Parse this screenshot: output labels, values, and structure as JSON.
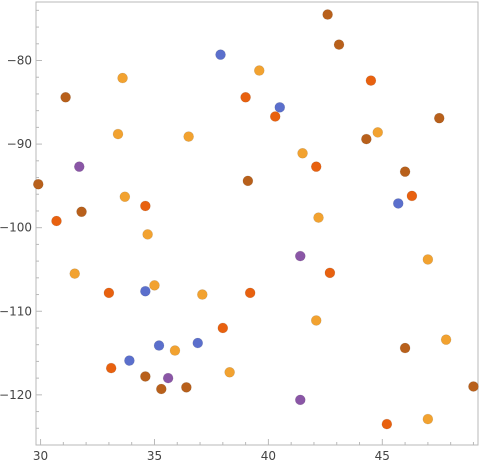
{
  "chart_data": {
    "type": "scatter",
    "title": "",
    "xlabel": "",
    "ylabel": "",
    "xlim": [
      29.8,
      49.2
    ],
    "ylim": [
      -126,
      -73
    ],
    "x_ticks": [
      30,
      35,
      40,
      45
    ],
    "y_ticks": [
      -80,
      -90,
      -100,
      -110,
      -120
    ],
    "grid": false,
    "legend": "none",
    "colors": {
      "blue": "#5b6fcc",
      "purple": "#8a56a6",
      "dark_orange": "#e8610f",
      "light_orange": "#f2a230",
      "brown": "#b8601b",
      "frame": "#b9b9b9"
    },
    "points": [
      {
        "x": 29.9,
        "y": -94.8,
        "color": "brown"
      },
      {
        "x": 30.7,
        "y": -99.2,
        "color": "dark_orange"
      },
      {
        "x": 31.1,
        "y": -84.4,
        "color": "brown"
      },
      {
        "x": 31.5,
        "y": -105.5,
        "color": "light_orange"
      },
      {
        "x": 31.7,
        "y": -92.7,
        "color": "purple"
      },
      {
        "x": 31.8,
        "y": -98.1,
        "color": "brown"
      },
      {
        "x": 33.0,
        "y": -107.8,
        "color": "dark_orange"
      },
      {
        "x": 33.1,
        "y": -116.8,
        "color": "dark_orange"
      },
      {
        "x": 33.4,
        "y": -88.8,
        "color": "light_orange"
      },
      {
        "x": 33.6,
        "y": -82.1,
        "color": "light_orange"
      },
      {
        "x": 33.7,
        "y": -96.3,
        "color": "light_orange"
      },
      {
        "x": 33.9,
        "y": -115.9,
        "color": "blue"
      },
      {
        "x": 34.6,
        "y": -97.4,
        "color": "dark_orange"
      },
      {
        "x": 34.6,
        "y": -107.6,
        "color": "blue"
      },
      {
        "x": 34.6,
        "y": -117.8,
        "color": "brown"
      },
      {
        "x": 34.7,
        "y": -100.8,
        "color": "light_orange"
      },
      {
        "x": 35.0,
        "y": -106.9,
        "color": "light_orange"
      },
      {
        "x": 35.2,
        "y": -114.1,
        "color": "blue"
      },
      {
        "x": 35.3,
        "y": -119.3,
        "color": "brown"
      },
      {
        "x": 35.6,
        "y": -118.0,
        "color": "purple"
      },
      {
        "x": 35.9,
        "y": -114.7,
        "color": "light_orange"
      },
      {
        "x": 36.4,
        "y": -119.1,
        "color": "brown"
      },
      {
        "x": 36.5,
        "y": -89.1,
        "color": "light_orange"
      },
      {
        "x": 36.9,
        "y": -113.8,
        "color": "blue"
      },
      {
        "x": 37.1,
        "y": -108.0,
        "color": "light_orange"
      },
      {
        "x": 37.9,
        "y": -79.3,
        "color": "blue"
      },
      {
        "x": 38.0,
        "y": -112.0,
        "color": "dark_orange"
      },
      {
        "x": 38.3,
        "y": -117.3,
        "color": "light_orange"
      },
      {
        "x": 39.0,
        "y": -84.4,
        "color": "dark_orange"
      },
      {
        "x": 39.1,
        "y": -94.4,
        "color": "brown"
      },
      {
        "x": 39.2,
        "y": -107.8,
        "color": "dark_orange"
      },
      {
        "x": 39.6,
        "y": -81.2,
        "color": "light_orange"
      },
      {
        "x": 40.3,
        "y": -86.7,
        "color": "dark_orange"
      },
      {
        "x": 40.5,
        "y": -85.6,
        "color": "blue"
      },
      {
        "x": 41.4,
        "y": -103.4,
        "color": "purple"
      },
      {
        "x": 41.4,
        "y": -120.6,
        "color": "purple"
      },
      {
        "x": 41.5,
        "y": -91.1,
        "color": "light_orange"
      },
      {
        "x": 42.1,
        "y": -92.7,
        "color": "dark_orange"
      },
      {
        "x": 42.1,
        "y": -111.1,
        "color": "light_orange"
      },
      {
        "x": 42.2,
        "y": -98.8,
        "color": "light_orange"
      },
      {
        "x": 42.6,
        "y": -74.5,
        "color": "brown"
      },
      {
        "x": 42.7,
        "y": -105.4,
        "color": "dark_orange"
      },
      {
        "x": 43.1,
        "y": -78.1,
        "color": "brown"
      },
      {
        "x": 44.3,
        "y": -89.4,
        "color": "brown"
      },
      {
        "x": 44.5,
        "y": -82.4,
        "color": "dark_orange"
      },
      {
        "x": 44.8,
        "y": -88.6,
        "color": "light_orange"
      },
      {
        "x": 45.2,
        "y": -123.5,
        "color": "dark_orange"
      },
      {
        "x": 45.7,
        "y": -97.1,
        "color": "blue"
      },
      {
        "x": 46.0,
        "y": -93.3,
        "color": "brown"
      },
      {
        "x": 46.0,
        "y": -114.4,
        "color": "brown"
      },
      {
        "x": 46.3,
        "y": -96.2,
        "color": "dark_orange"
      },
      {
        "x": 47.0,
        "y": -103.8,
        "color": "light_orange"
      },
      {
        "x": 47.0,
        "y": -122.9,
        "color": "light_orange"
      },
      {
        "x": 47.5,
        "y": -86.9,
        "color": "brown"
      },
      {
        "x": 47.8,
        "y": -113.4,
        "color": "light_orange"
      },
      {
        "x": 49.0,
        "y": -119.0,
        "color": "brown"
      }
    ]
  }
}
